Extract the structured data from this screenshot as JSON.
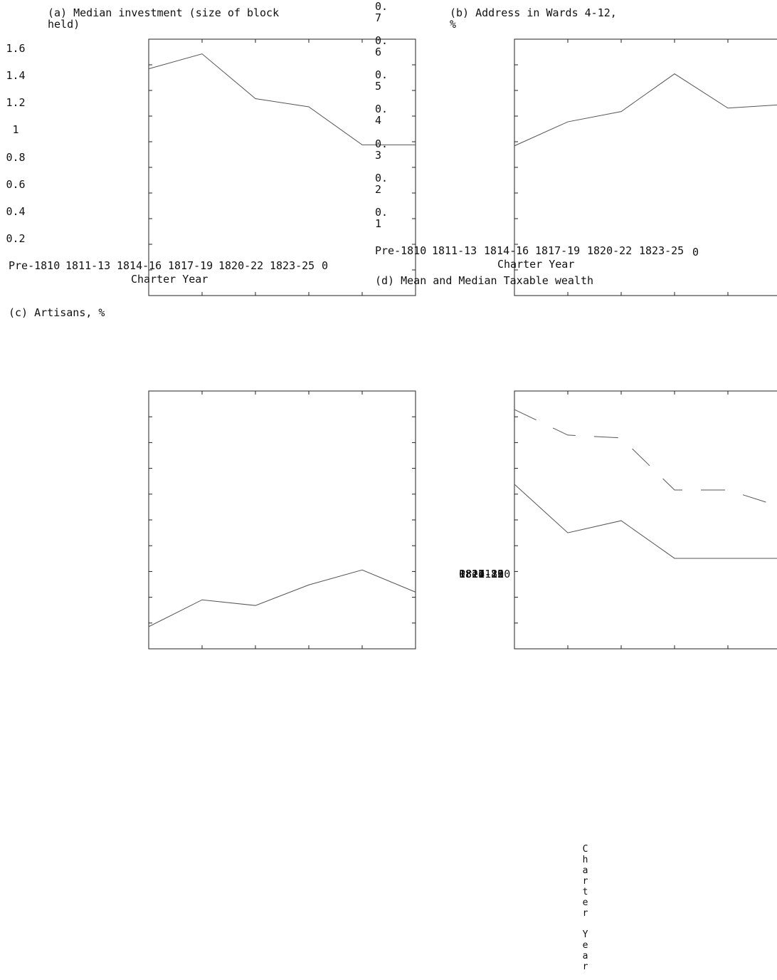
{
  "chart_data": [
    {
      "type": "line",
      "title": "(a) Median investment (size of block held)",
      "xlabel": "Charter Year",
      "categories": [
        "Pre-1810",
        "1811-13",
        "1814-16",
        "1817-19",
        "1820-22",
        "1823-25"
      ],
      "values": [
        1.45,
        1.56,
        1.23,
        1.17,
        0.89,
        0.89
      ],
      "color": "#555555",
      "ylim": [
        0,
        1.6
      ],
      "yticks": [
        0,
        0.2,
        0.4,
        0.6,
        0.8,
        1,
        1.2,
        1.4,
        1.6
      ]
    },
    {
      "type": "line",
      "title": "(b) Address in Wards 4-12, %",
      "xlabel": "Charter Year",
      "categories": [
        "Pre-1810",
        "1811-13",
        "1814-16",
        "1817-19",
        "1820-22",
        "1823-25"
      ],
      "values": [
        0.31,
        0.38,
        0.41,
        0.52,
        0.42,
        0.43
      ],
      "color": "#555555",
      "ylim": [
        0,
        0.7
      ],
      "yticks": [
        0,
        0.1,
        0.2,
        0.3,
        0.4,
        0.5,
        0.6,
        0.7
      ]
    },
    {
      "type": "line",
      "title": "(c) Artisans, %",
      "xlabel": "Charter Year",
      "categories": [
        "Pre-1810",
        "1811-13",
        "1814-16",
        "1817-19",
        "1820-22",
        "1823-25"
      ],
      "values": [
        4.3,
        9.5,
        8.4,
        12.4,
        15.3,
        11.0
      ],
      "color": "#555555",
      "ylim": [
        0,
        50
      ],
      "yticks": [
        0
      ]
    },
    {
      "type": "line",
      "title": "(d) Mean and Median Taxable wealth",
      "series": [
        {
          "color": "#555555",
          "dash": true,
          "values": [
            92.8,
            82.9,
            81.8,
            61.6,
            61.6,
            55.0
          ]
        },
        {
          "color": "#555555",
          "dash": false,
          "values": [
            63.8,
            45.0,
            49.7,
            35.1,
            35.1,
            35.1
          ]
        }
      ],
      "ylim": [
        0,
        100
      ]
    }
  ]
}
